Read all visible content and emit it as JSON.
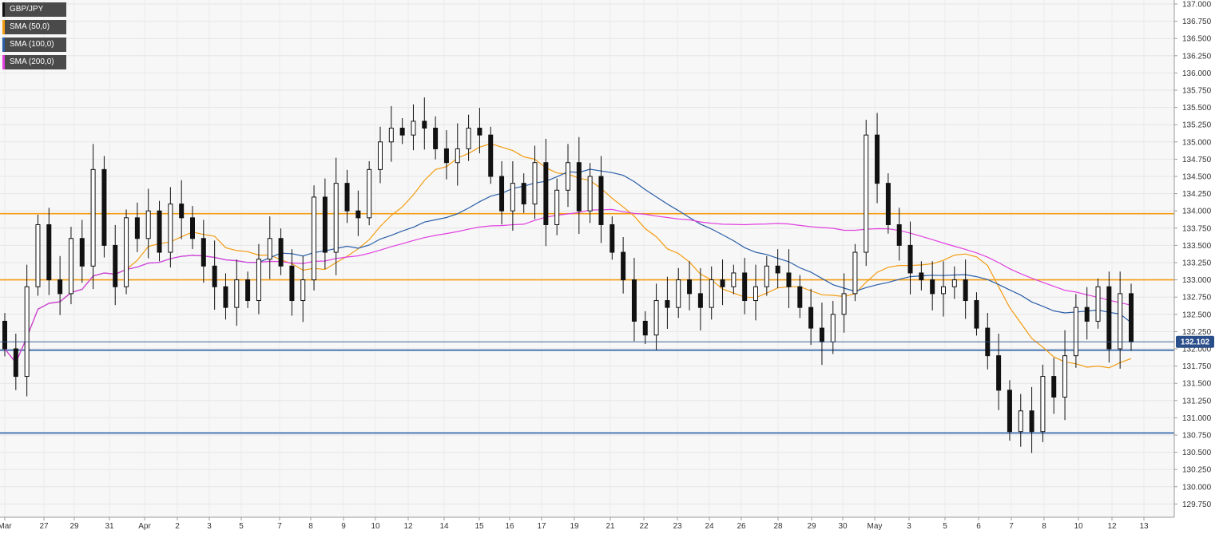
{
  "chart_data": {
    "type": "candlestick",
    "symbol": "GBP/JPY",
    "ylim": [
      129.6,
      137.0
    ],
    "y_ticks": [
      "137.000",
      "136.750",
      "136.500",
      "136.250",
      "136.000",
      "135.750",
      "135.500",
      "135.250",
      "135.000",
      "134.750",
      "134.500",
      "134.250",
      "134.000",
      "133.750",
      "133.500",
      "133.250",
      "133.000",
      "132.750",
      "132.500",
      "132.250",
      "132.000",
      "131.750",
      "131.500",
      "131.250",
      "131.000",
      "130.750",
      "130.500",
      "130.250",
      "130.000",
      "129.750"
    ],
    "x_ticks": [
      "Mar",
      "27",
      "29",
      "31",
      "Apr",
      "2",
      "3",
      "5",
      "7",
      "8",
      "9",
      "10",
      "12",
      "14",
      "15",
      "16",
      "17",
      "19",
      "21",
      "22",
      "23",
      "24",
      "26",
      "28",
      "29",
      "30",
      "May",
      "3",
      "5",
      "6",
      "7",
      "8",
      "10",
      "12",
      "13"
    ],
    "last_price": "132.102",
    "legend": [
      {
        "label": "GBP/JPY",
        "color": "#000000"
      },
      {
        "label": "SMA (50,0)",
        "color": "#f39c12"
      },
      {
        "label": "SMA (100,0)",
        "color": "#2a5ea8"
      },
      {
        "label": "SMA (200,0)",
        "color": "#e040e0"
      }
    ],
    "horizontal_levels": [
      {
        "value": 133.96,
        "color": "#f39c12"
      },
      {
        "value": 133.0,
        "color": "#f39c12"
      },
      {
        "value": 131.98,
        "color": "#2a5ea8"
      },
      {
        "value": 130.78,
        "color": "#2a5ea8"
      }
    ],
    "close_series": [
      132.0,
      131.6,
      132.9,
      133.8,
      133.0,
      132.8,
      133.6,
      133.2,
      134.6,
      133.5,
      132.9,
      133.9,
      133.6,
      134.0,
      133.4,
      134.1,
      133.9,
      133.6,
      133.2,
      132.9,
      132.6,
      133.0,
      132.7,
      133.3,
      133.6,
      133.2,
      132.7,
      133.0,
      134.2,
      133.4,
      134.4,
      134.0,
      133.9,
      134.6,
      135.0,
      135.2,
      135.1,
      135.3,
      135.2,
      134.9,
      134.7,
      134.9,
      135.2,
      135.1,
      134.5,
      134.0,
      134.4,
      134.1,
      134.7,
      133.8,
      134.3,
      134.7,
      134.0,
      134.5,
      133.8,
      133.4,
      133.0,
      132.4,
      132.2,
      132.7,
      132.6,
      133.0,
      132.8,
      132.6,
      133.0,
      132.9,
      133.1,
      132.7,
      132.9,
      133.2,
      133.1,
      132.9,
      132.6,
      132.3,
      132.1,
      132.5,
      132.8,
      133.4,
      135.1,
      134.4,
      133.8,
      133.5,
      133.1,
      133.0,
      132.8,
      132.9,
      133.0,
      132.7,
      132.3,
      131.9,
      131.4,
      130.8,
      131.1,
      130.8,
      131.6,
      131.3,
      131.9,
      132.6,
      132.4,
      132.9,
      132.0,
      132.8,
      132.1
    ]
  }
}
